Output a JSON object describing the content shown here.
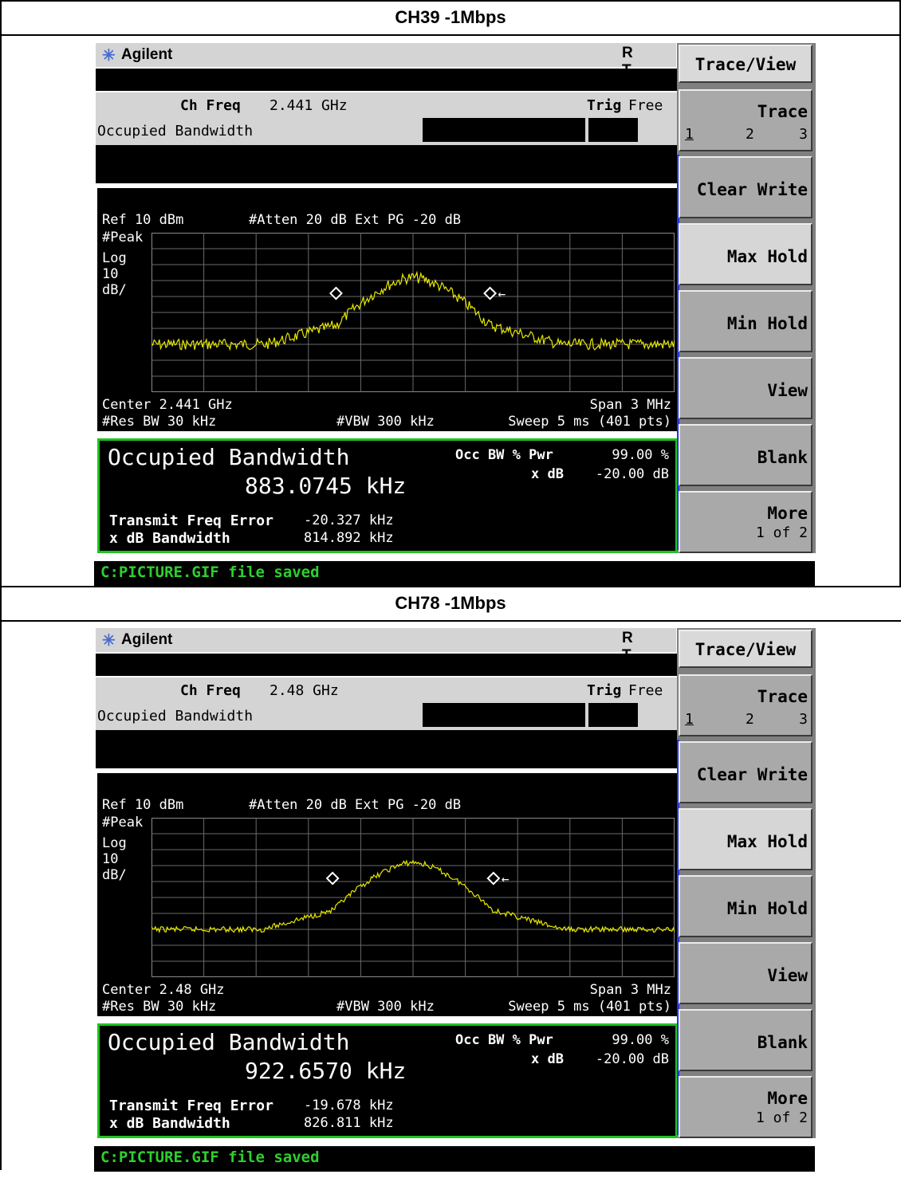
{
  "screens": [
    {
      "title": "CH39 -1Mbps",
      "ch_freq_label": "Ch Freq",
      "ch_freq": "2.441 GHz",
      "trig_label": "Trig",
      "trig_value": "Free",
      "mode_name": "Occupied Bandwidth",
      "ref": "Ref 10 dBm",
      "atten": "#Atten 20 dB  Ext PG -20 dB",
      "scale_lines": [
        "#Peak",
        "Log",
        "10",
        "dB/"
      ],
      "center": "Center 2.441 GHz",
      "span": "Span 3 MHz",
      "res_bw": "#Res BW 30 kHz",
      "vbw": "#VBW 300 kHz",
      "sweep": "Sweep 5 ms (401 pts)",
      "result_title": "Occupied Bandwidth",
      "result_value": "883.0745 kHz",
      "occ_label": "Occ BW % Pwr",
      "occ_value": "99.00 %",
      "xdb_label": "x dB",
      "xdb_value": "-20.00 dB",
      "tfe_label": "Transmit Freq Error",
      "tfe_value": "-20.327 kHz",
      "xbw_label": "x dB Bandwidth",
      "xbw_value": "814.892 kHz",
      "status": "C:PICTURE.GIF file saved",
      "occ_bw_khz": 883.0745
    },
    {
      "title": "CH78 -1Mbps",
      "ch_freq_label": "Ch Freq",
      "ch_freq": "2.48 GHz",
      "trig_label": "Trig",
      "trig_value": "Free",
      "mode_name": "Occupied Bandwidth",
      "ref": "Ref 10 dBm",
      "atten": "#Atten 20 dB  Ext PG -20 dB",
      "scale_lines": [
        "#Peak",
        "Log",
        "10",
        "dB/"
      ],
      "center": "Center 2.48 GHz",
      "span": "Span 3 MHz",
      "res_bw": "#Res BW 30 kHz",
      "vbw": "#VBW 300 kHz",
      "sweep": "Sweep 5 ms (401 pts)",
      "result_title": "Occupied Bandwidth",
      "result_value": "922.6570 kHz",
      "occ_label": "Occ BW % Pwr",
      "occ_value": "99.00 %",
      "xdb_label": "x dB",
      "xdb_value": "-20.00 dB",
      "tfe_label": "Transmit Freq Error",
      "tfe_value": "-19.678 kHz",
      "xbw_label": "x dB Bandwidth",
      "xbw_value": "826.811 kHz",
      "status": "C:PICTURE.GIF file saved",
      "occ_bw_khz": 922.657
    }
  ],
  "brand": "Agilent",
  "rt": "R T",
  "softkeys": {
    "title": "Trace/View",
    "trace": "Trace",
    "trace_sub": [
      "1",
      "2",
      "3"
    ],
    "clear_write": "Clear Write",
    "max_hold": "Max Hold",
    "min_hold": "Min Hold",
    "view": "View",
    "blank": "Blank",
    "more": "More",
    "more_sub": "1 of 2"
  },
  "colors": {
    "trace": "#e8e800",
    "result_border": "#1fc41f",
    "status_text": "#2ecf2e"
  },
  "icons": {
    "logo": "agilent-spark-icon",
    "marker": "diamond-marker-icon",
    "arrow": "left-arrow-icon"
  }
}
